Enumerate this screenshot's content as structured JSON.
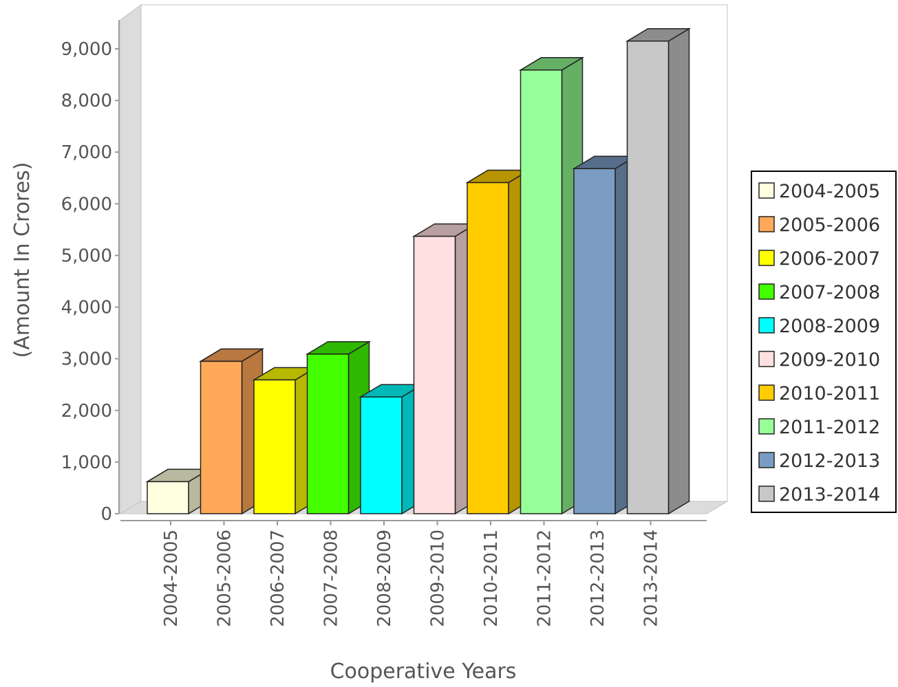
{
  "chart_data": {
    "type": "bar",
    "title": "",
    "xlabel": "Cooperative Years",
    "ylabel": "(Amount In Crores)",
    "ylim": [
      0,
      9000
    ],
    "yticks": [
      0,
      1000,
      2000,
      3000,
      4000,
      5000,
      6000,
      7000,
      8000,
      9000
    ],
    "ytick_labels": [
      "0",
      "1,000",
      "2,000",
      "3,000",
      "4,000",
      "5,000",
      "6,000",
      "7,000",
      "8,000",
      "9,000"
    ],
    "grid": false,
    "legend_position": "right",
    "three_d": true,
    "categories": [
      "2004-2005",
      "2005-2006",
      "2006-2007",
      "2007-2008",
      "2008-2009",
      "2009-2010",
      "2010-2011",
      "2011-2012",
      "2012-2013",
      "2013-2014"
    ],
    "values": [
      620,
      2950,
      2590,
      3090,
      2260,
      5370,
      6410,
      8590,
      6680,
      9150
    ],
    "colors": [
      "#FFFFE0",
      "#FFA858",
      "#FFFF00",
      "#44FF00",
      "#00FFFF",
      "#FFE0E0",
      "#FFCC00",
      "#98FF98",
      "#7A9CC2",
      "#C8C8C8"
    ],
    "side_colors": [
      "#B8B89E",
      "#B8783F",
      "#B8B800",
      "#2EB800",
      "#00B8B8",
      "#B8A0A0",
      "#B89400",
      "#66B066",
      "#566E8A",
      "#8C8C8C"
    ]
  }
}
